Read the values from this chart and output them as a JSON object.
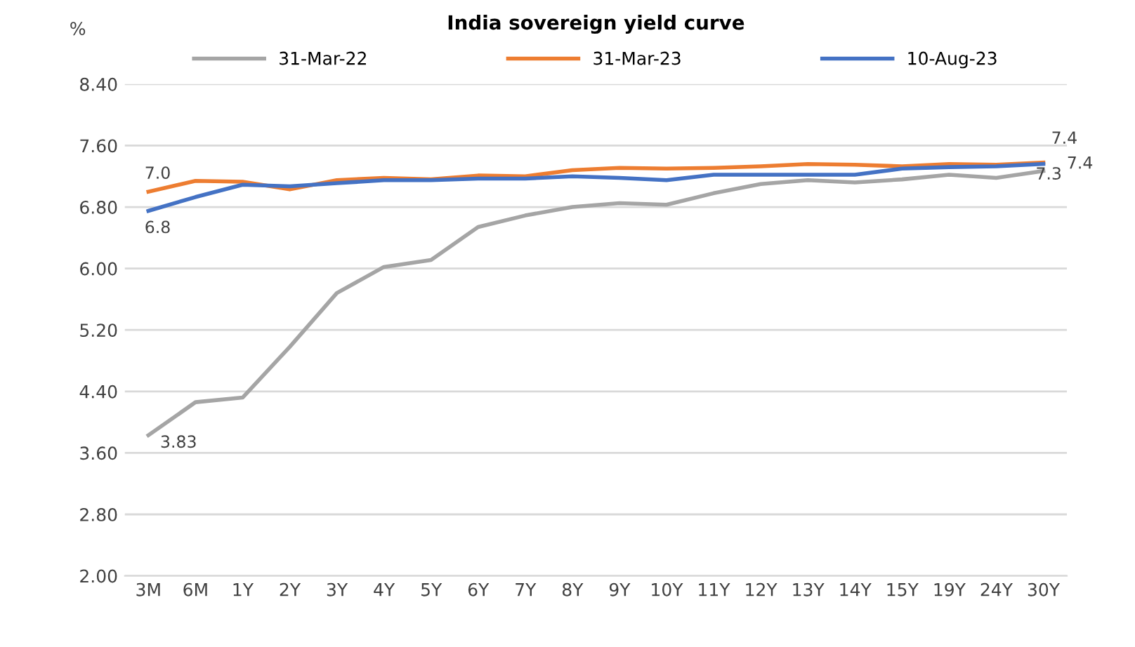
{
  "chart_data": {
    "type": "line",
    "title": "India sovereign yield curve",
    "ylabel": "%",
    "categories": [
      "3M",
      "6M",
      "1Y",
      "2Y",
      "3Y",
      "4Y",
      "5Y",
      "6Y",
      "7Y",
      "8Y",
      "9Y",
      "10Y",
      "11Y",
      "12Y",
      "13Y",
      "14Y",
      "15Y",
      "19Y",
      "24Y",
      "30Y"
    ],
    "series": [
      {
        "name": "31-Mar-22",
        "color": "#a5a5a5",
        "values": [
          3.83,
          4.26,
          4.32,
          4.98,
          5.68,
          6.02,
          6.11,
          6.54,
          6.69,
          6.8,
          6.85,
          6.83,
          6.98,
          7.1,
          7.15,
          7.12,
          7.16,
          7.22,
          7.18,
          7.27
        ],
        "value_labels": [
          "3.83",
          null,
          null,
          null,
          null,
          null,
          null,
          null,
          null,
          null,
          null,
          null,
          null,
          null,
          null,
          null,
          null,
          null,
          null,
          "7.3"
        ]
      },
      {
        "name": "31-Mar-23",
        "color": "#ed7d31",
        "values": [
          7.0,
          7.14,
          7.13,
          7.03,
          7.15,
          7.18,
          7.16,
          7.21,
          7.2,
          7.28,
          7.31,
          7.3,
          7.31,
          7.33,
          7.36,
          7.35,
          7.33,
          7.36,
          7.35,
          7.38
        ],
        "value_labels": [
          "7.0",
          null,
          null,
          null,
          null,
          null,
          null,
          null,
          null,
          null,
          null,
          null,
          null,
          null,
          null,
          null,
          null,
          null,
          null,
          "7.4"
        ]
      },
      {
        "name": "10-Aug-23",
        "color": "#4472c4",
        "values": [
          6.75,
          6.93,
          7.09,
          7.07,
          7.11,
          7.15,
          7.15,
          7.17,
          7.17,
          7.2,
          7.18,
          7.15,
          7.22,
          7.22,
          7.22,
          7.22,
          7.3,
          7.32,
          7.33,
          7.36
        ],
        "value_labels": [
          "6.8",
          null,
          null,
          null,
          null,
          null,
          null,
          null,
          null,
          null,
          null,
          null,
          null,
          null,
          null,
          null,
          null,
          null,
          null,
          "7.4"
        ]
      }
    ],
    "ylim": [
      2.0,
      8.4
    ],
    "yticks": [
      {
        "value": 2.0,
        "label": "2.00"
      },
      {
        "value": 2.8,
        "label": "2.80"
      },
      {
        "value": 3.6,
        "label": "3.60"
      },
      {
        "value": 4.4,
        "label": "4.40"
      },
      {
        "value": 5.2,
        "label": "5.20"
      },
      {
        "value": 6.0,
        "label": "6.00"
      },
      {
        "value": 6.8,
        "label": "6.80"
      },
      {
        "value": 7.6,
        "label": "7.60"
      },
      {
        "value": 8.4,
        "label": "8.40"
      }
    ],
    "grid": "y",
    "legend": "top",
    "marker": "none",
    "line_style": "solid"
  }
}
